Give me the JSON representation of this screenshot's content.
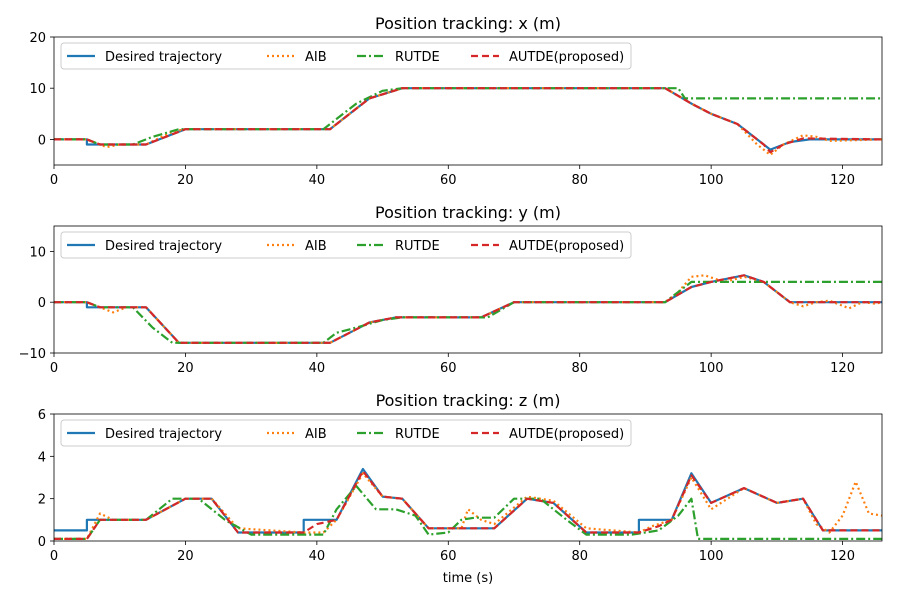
{
  "chart_data": [
    {
      "type": "line",
      "title": "Position tracking: x (m)",
      "xlabel": "",
      "ylabel": "",
      "xlim": [
        0,
        126
      ],
      "ylim": [
        -5,
        20
      ],
      "xticks": [
        "0",
        "20",
        "40",
        "60",
        "80",
        "100",
        "120"
      ],
      "yticks": [
        "0",
        "10",
        "20"
      ],
      "legend": "top-left",
      "series": [
        {
          "name": "Desired trajectory",
          "color": "#1f77b4",
          "style": "solid",
          "x": [
            0,
            5,
            5,
            14,
            20,
            42,
            45,
            48,
            53,
            93,
            97,
            100,
            104,
            108,
            109,
            112,
            115,
            126
          ],
          "y": [
            0,
            0,
            -1,
            -1,
            2,
            2,
            5,
            8,
            10,
            10,
            7,
            5,
            3,
            -1,
            -2,
            -0.5,
            0,
            0
          ]
        },
        {
          "name": "AIB",
          "color": "#ff7f0e",
          "style": "dotted",
          "x": [
            0,
            5,
            6,
            8,
            10,
            12,
            14,
            18,
            20,
            42,
            45,
            48,
            53,
            93,
            97,
            100,
            104,
            107,
            109,
            111,
            114,
            116,
            118,
            126
          ],
          "y": [
            0,
            0,
            -0.5,
            -1.5,
            -1.0,
            -1.0,
            -1,
            1.5,
            2,
            2,
            5,
            8,
            10,
            10,
            7,
            5,
            3,
            -1,
            -3,
            -1,
            0.8,
            0.5,
            -0.3,
            0
          ]
        },
        {
          "name": "RUTDE",
          "color": "#2ca02c",
          "style": "dashdot",
          "x": [
            0,
            5,
            7,
            12,
            15,
            19,
            41,
            43,
            46,
            50,
            53,
            95,
            96,
            126
          ],
          "y": [
            0,
            0,
            -1,
            -1,
            0.5,
            2,
            2,
            4,
            7,
            9.5,
            10,
            10,
            8,
            8
          ]
        },
        {
          "name": "AUTDE(proposed)",
          "color": "#d62728",
          "style": "dashed",
          "x": [
            0,
            5,
            7,
            14,
            20,
            42,
            45,
            48,
            53,
            93,
            97,
            100,
            104,
            108,
            109,
            111,
            114,
            126
          ],
          "y": [
            0,
            0,
            -1,
            -1,
            2,
            2,
            5,
            8,
            10,
            10,
            7,
            5,
            3,
            -1,
            -2.5,
            -1,
            0.2,
            0
          ]
        }
      ]
    },
    {
      "type": "line",
      "title": "Position tracking: y (m)",
      "xlabel": "",
      "ylabel": "",
      "xlim": [
        0,
        126
      ],
      "ylim": [
        -10,
        15
      ],
      "xticks": [
        "0",
        "20",
        "40",
        "60",
        "80",
        "100",
        "120"
      ],
      "yticks": [
        "−10",
        "0",
        "10"
      ],
      "legend": "top-left",
      "series": [
        {
          "name": "Desired trajectory",
          "color": "#1f77b4",
          "style": "solid",
          "x": [
            0,
            5,
            5,
            14,
            19,
            42,
            45,
            48,
            52,
            65,
            70,
            93,
            97,
            100,
            105,
            108,
            112,
            126
          ],
          "y": [
            0,
            0,
            -1,
            -1,
            -8,
            -8,
            -6,
            -4,
            -3,
            -3,
            0,
            0,
            3,
            4,
            5.3,
            4,
            0,
            0
          ]
        },
        {
          "name": "AIB",
          "color": "#ff7f0e",
          "style": "dotted",
          "x": [
            0,
            5,
            7,
            9,
            11,
            14,
            19,
            42,
            45,
            48,
            52,
            65,
            70,
            93,
            95,
            97,
            99,
            102,
            105,
            108,
            110,
            112,
            114,
            116,
            118,
            121,
            123,
            125,
            126
          ],
          "y": [
            0,
            0,
            -1,
            -2,
            -1,
            -1,
            -8,
            -8,
            -6,
            -4,
            -3,
            -3,
            0,
            0,
            2,
            5,
            5.3,
            4,
            5,
            4,
            2,
            0,
            -0.8,
            0,
            0.3,
            -1.2,
            0,
            -0.3,
            0
          ]
        },
        {
          "name": "RUTDE",
          "color": "#2ca02c",
          "style": "dashdot",
          "x": [
            0,
            5,
            7,
            12,
            15,
            18,
            41,
            43,
            46,
            50,
            53,
            66,
            68,
            70,
            93,
            95,
            97,
            126
          ],
          "y": [
            0,
            0,
            -1,
            -1,
            -5,
            -8,
            -8,
            -6,
            -5,
            -3.5,
            -3,
            -3,
            -1.5,
            0,
            0,
            2,
            4,
            4
          ]
        },
        {
          "name": "AUTDE(proposed)",
          "color": "#d62728",
          "style": "dashed",
          "x": [
            0,
            5,
            7,
            14,
            19,
            42,
            45,
            48,
            52,
            65,
            70,
            93,
            97,
            100,
            105,
            108,
            112,
            126
          ],
          "y": [
            0,
            0,
            -1,
            -1,
            -8,
            -8,
            -6,
            -4,
            -3,
            -3,
            0,
            0,
            3,
            4,
            5.3,
            4,
            0,
            0
          ]
        }
      ]
    },
    {
      "type": "line",
      "title": "Position tracking: z (m)",
      "xlabel": "time (s)",
      "ylabel": "",
      "xlim": [
        0,
        126
      ],
      "ylim": [
        0,
        6
      ],
      "xticks": [
        "0",
        "20",
        "40",
        "60",
        "80",
        "100",
        "120"
      ],
      "yticks": [
        "0",
        "2",
        "4",
        "6"
      ],
      "legend": "top-left",
      "series": [
        {
          "name": "Desired trajectory",
          "color": "#1f77b4",
          "style": "solid",
          "x": [
            0,
            5,
            5,
            14,
            20,
            24,
            28,
            38,
            38,
            43,
            47,
            50,
            53,
            57,
            62,
            67,
            72,
            76,
            81,
            89,
            89,
            94,
            97,
            100,
            105,
            110,
            114,
            117,
            126
          ],
          "y": [
            0.5,
            0.5,
            1,
            1,
            2,
            2,
            0.4,
            0.4,
            1,
            1,
            3.4,
            2.1,
            2,
            0.6,
            0.6,
            0.6,
            2,
            1.8,
            0.4,
            0.4,
            1,
            1,
            3.2,
            1.8,
            2.5,
            1.8,
            2,
            0.5,
            0.5
          ]
        },
        {
          "name": "AIB",
          "color": "#ff7f0e",
          "style": "dotted",
          "x": [
            0,
            5,
            7,
            9,
            14,
            20,
            24,
            28,
            38,
            41,
            43,
            47,
            50,
            53,
            57,
            62,
            63,
            65,
            67,
            72,
            76,
            81,
            89,
            91,
            94,
            97,
            100,
            105,
            110,
            114,
            116,
            118,
            120,
            122,
            124,
            126
          ],
          "y": [
            0.1,
            0.1,
            1.3,
            1,
            1,
            2,
            2,
            0.6,
            0.4,
            0.4,
            1,
            3.2,
            2.1,
            2,
            0.6,
            0.6,
            1.5,
            1,
            0.8,
            2.1,
            1.9,
            0.6,
            0.4,
            0.7,
            1,
            3,
            1.5,
            2.5,
            1.8,
            2,
            0.8,
            0.4,
            1.2,
            2.8,
            1.3,
            1.2
          ]
        },
        {
          "name": "RUTDE",
          "color": "#2ca02c",
          "style": "dashdot",
          "x": [
            0,
            5,
            7,
            14,
            18,
            22,
            26,
            30,
            38,
            41,
            43,
            46,
            49,
            52,
            55,
            57,
            60,
            62,
            64,
            67,
            70,
            74,
            78,
            81,
            88,
            92,
            95,
            97,
            98,
            126
          ],
          "y": [
            0.1,
            0.1,
            1,
            1,
            2,
            2,
            1,
            0.3,
            0.3,
            0.3,
            1.5,
            2.6,
            1.5,
            1.5,
            1.2,
            0.3,
            0.4,
            1,
            1.1,
            1.1,
            2,
            2,
            1,
            0.3,
            0.3,
            0.5,
            1.2,
            2,
            0.1,
            0.1
          ]
        },
        {
          "name": "AUTDE(proposed)",
          "color": "#d62728",
          "style": "dashed",
          "x": [
            0,
            5,
            7,
            14,
            20,
            24,
            28,
            38,
            40,
            43,
            47,
            50,
            53,
            57,
            62,
            67,
            72,
            76,
            81,
            89,
            92,
            94,
            97,
            100,
            105,
            110,
            114,
            117,
            126
          ],
          "y": [
            0.1,
            0.1,
            1,
            1,
            2,
            2,
            0.4,
            0.4,
            0.8,
            1,
            3.3,
            2.1,
            2,
            0.6,
            0.6,
            0.6,
            2,
            1.8,
            0.4,
            0.4,
            0.7,
            1,
            3.1,
            1.8,
            2.5,
            1.8,
            2,
            0.5,
            0.5
          ]
        }
      ]
    }
  ]
}
